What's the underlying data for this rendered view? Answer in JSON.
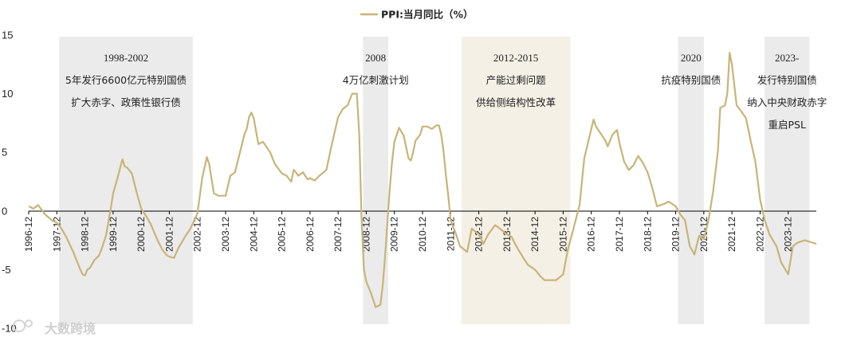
{
  "chart_data": {
    "type": "line",
    "legend": {
      "label": "PPI:当月同比（%）",
      "position": "top-center"
    },
    "colors": {
      "line": "#C8B478",
      "shade_gray": "#EBEBEB",
      "shade_beige": "#F5F0E6",
      "axis": "#000000"
    },
    "y_axis": {
      "min": -10,
      "max": 15,
      "ticks": [
        15,
        10,
        5,
        0,
        -5,
        -10
      ]
    },
    "x_axis": {
      "start": 1996.917,
      "end": 2024.917,
      "tick_labels": [
        "1996-12",
        "1997-12",
        "1998-12",
        "1999-12",
        "2000-12",
        "2001-12",
        "2002-12",
        "2003-12",
        "2004-12",
        "2005-12",
        "2006-12",
        "2007-12",
        "2008-12",
        "2009-12",
        "2010-12",
        "2011-12",
        "2012-12",
        "2013-12",
        "2014-12",
        "2015-12",
        "2016-12",
        "2017-12",
        "2018-12",
        "2019-12",
        "2020-12",
        "2021-12",
        "2022-12",
        "2023-12"
      ]
    },
    "shaded_periods": [
      {
        "start": 1998.0,
        "end": 2002.75,
        "style": "gray",
        "lines": [
          "1998-2002",
          "5年发行6600亿元特别国债",
          "扩大赤字、政策性银行债"
        ]
      },
      {
        "start": 2008.8,
        "end": 2009.7,
        "style": "gray",
        "lines": [
          "2008",
          "4万亿刺激计划"
        ]
      },
      {
        "start": 2012.3,
        "end": 2016.17,
        "style": "beige",
        "lines": [
          "2012-2015",
          "产能过剩问题",
          "供给侧结构性改革"
        ]
      },
      {
        "start": 2020.0,
        "end": 2020.92,
        "style": "gray",
        "lines": [
          "2020",
          "抗疫特别国债"
        ]
      },
      {
        "start": 2023.08,
        "end": 2024.67,
        "style": "gray",
        "lines": [
          "2023-",
          "发行特别国债",
          "纳入中央财政赤字",
          "重启PSL"
        ]
      }
    ],
    "series": [
      {
        "name": "PPI:当月同比（%）",
        "x": [
          1996.917,
          1997.083,
          1997.25,
          1997.5,
          1997.75,
          1997.917,
          1998.083,
          1998.25,
          1998.5,
          1998.667,
          1998.75,
          1998.833,
          1998.917,
          1999.0,
          1999.083,
          1999.25,
          1999.417,
          1999.5,
          1999.667,
          1999.833,
          1999.917,
          2000.083,
          2000.25,
          2000.333,
          2000.417,
          2000.583,
          2000.75,
          2000.917,
          2001.083,
          2001.25,
          2001.5,
          2001.667,
          2001.833,
          2001.917,
          2002.083,
          2002.25,
          2002.5,
          2002.667,
          2002.917,
          2003.083,
          2003.25,
          2003.333,
          2003.5,
          2003.667,
          2003.917,
          2004.083,
          2004.25,
          2004.417,
          2004.583,
          2004.667,
          2004.75,
          2004.833,
          2004.917,
          2005.083,
          2005.25,
          2005.5,
          2005.667,
          2005.917,
          2006.083,
          2006.25,
          2006.333,
          2006.417,
          2006.5,
          2006.667,
          2006.833,
          2006.917,
          2007.083,
          2007.25,
          2007.5,
          2007.667,
          2007.917,
          2008.083,
          2008.25,
          2008.417,
          2008.583,
          2008.667,
          2008.75,
          2008.833,
          2008.917,
          2009.083,
          2009.25,
          2009.417,
          2009.5,
          2009.583,
          2009.667,
          2009.75,
          2009.833,
          2009.917,
          2010.083,
          2010.25,
          2010.417,
          2010.5,
          2010.583,
          2010.667,
          2010.833,
          2010.917,
          2011.083,
          2011.25,
          2011.417,
          2011.5,
          2011.583,
          2011.667,
          2011.75,
          2011.833,
          2011.917,
          2012.083,
          2012.25,
          2012.5,
          2012.667,
          2012.917,
          2013.083,
          2013.25,
          2013.5,
          2013.667,
          2013.917,
          2014.083,
          2014.25,
          2014.5,
          2014.667,
          2014.917,
          2015.083,
          2015.25,
          2015.5,
          2015.667,
          2015.917,
          2016.083,
          2016.25,
          2016.5,
          2016.667,
          2016.917,
          2017.0,
          2017.083,
          2017.25,
          2017.417,
          2017.5,
          2017.667,
          2017.833,
          2017.917,
          2018.083,
          2018.25,
          2018.417,
          2018.583,
          2018.75,
          2018.917,
          2019.083,
          2019.25,
          2019.5,
          2019.667,
          2019.917,
          2020.083,
          2020.25,
          2020.417,
          2020.583,
          2020.75,
          2020.917,
          2021.083,
          2021.25,
          2021.417,
          2021.5,
          2021.583,
          2021.667,
          2021.75,
          2021.833,
          2021.917,
          2022.083,
          2022.25,
          2022.417,
          2022.583,
          2022.75,
          2022.917,
          2023.083,
          2023.25,
          2023.5,
          2023.667,
          2023.917,
          2024.083,
          2024.25,
          2024.5,
          2024.917
        ],
        "y": [
          0.4,
          0.2,
          0.5,
          -0.3,
          -0.8,
          -1.0,
          -1.5,
          -2.2,
          -3.5,
          -4.5,
          -5.0,
          -5.4,
          -5.5,
          -5.0,
          -4.9,
          -4.2,
          -3.8,
          -3.3,
          -2.1,
          0.2,
          1.5,
          2.9,
          4.4,
          3.8,
          3.7,
          3.2,
          1.6,
          0.2,
          -0.4,
          -1.1,
          -2.5,
          -3.3,
          -3.8,
          -3.9,
          -4.0,
          -3.1,
          -2.1,
          -1.5,
          -0.2,
          2.8,
          4.6,
          4.0,
          1.5,
          1.3,
          1.3,
          3.0,
          3.3,
          4.9,
          6.5,
          7.0,
          8.0,
          8.4,
          7.9,
          5.7,
          5.9,
          5.0,
          4.0,
          3.2,
          3.0,
          2.5,
          3.5,
          3.3,
          3.0,
          3.3,
          2.7,
          2.8,
          2.6,
          3.0,
          3.5,
          5.4,
          8.0,
          8.7,
          9.0,
          10.0,
          10.0,
          6.6,
          -0.6,
          -5.0,
          -6.0,
          -7.0,
          -8.2,
          -8.0,
          -6.4,
          -4.0,
          -1.0,
          1.8,
          4.2,
          5.9,
          7.1,
          6.4,
          4.5,
          4.3,
          5.0,
          6.0,
          6.5,
          7.2,
          7.2,
          7.0,
          7.3,
          7.3,
          6.5,
          5.0,
          3.0,
          1.3,
          -0.8,
          -1.8,
          -3.0,
          -3.5,
          -1.5,
          -2.0,
          -2.8,
          -2.0,
          -1.2,
          -1.5,
          -2.0,
          -2.2,
          -3.0,
          -4.0,
          -4.6,
          -5.0,
          -5.5,
          -5.9,
          -5.9,
          -5.9,
          -5.4,
          -3.3,
          -1.8,
          0.5,
          4.5,
          7.0,
          7.8,
          7.2,
          6.6,
          6.0,
          5.5,
          6.5,
          6.9,
          5.8,
          4.2,
          3.5,
          3.9,
          4.7,
          4.1,
          3.3,
          2.0,
          0.4,
          0.6,
          0.8,
          0.4,
          -0.3,
          -0.8,
          -3.0,
          -3.7,
          -2.1,
          -2.4,
          -0.8,
          1.7,
          5.1,
          8.8,
          8.9,
          9.0,
          10.0,
          13.5,
          12.5,
          9.0,
          8.5,
          7.9,
          6.0,
          4.2,
          1.0,
          -0.8,
          -2.0,
          -3.0,
          -4.4,
          -5.4,
          -3.0,
          -2.7,
          -2.5,
          -2.8
        ]
      }
    ]
  },
  "watermark": {
    "brand": "大数跨境"
  }
}
